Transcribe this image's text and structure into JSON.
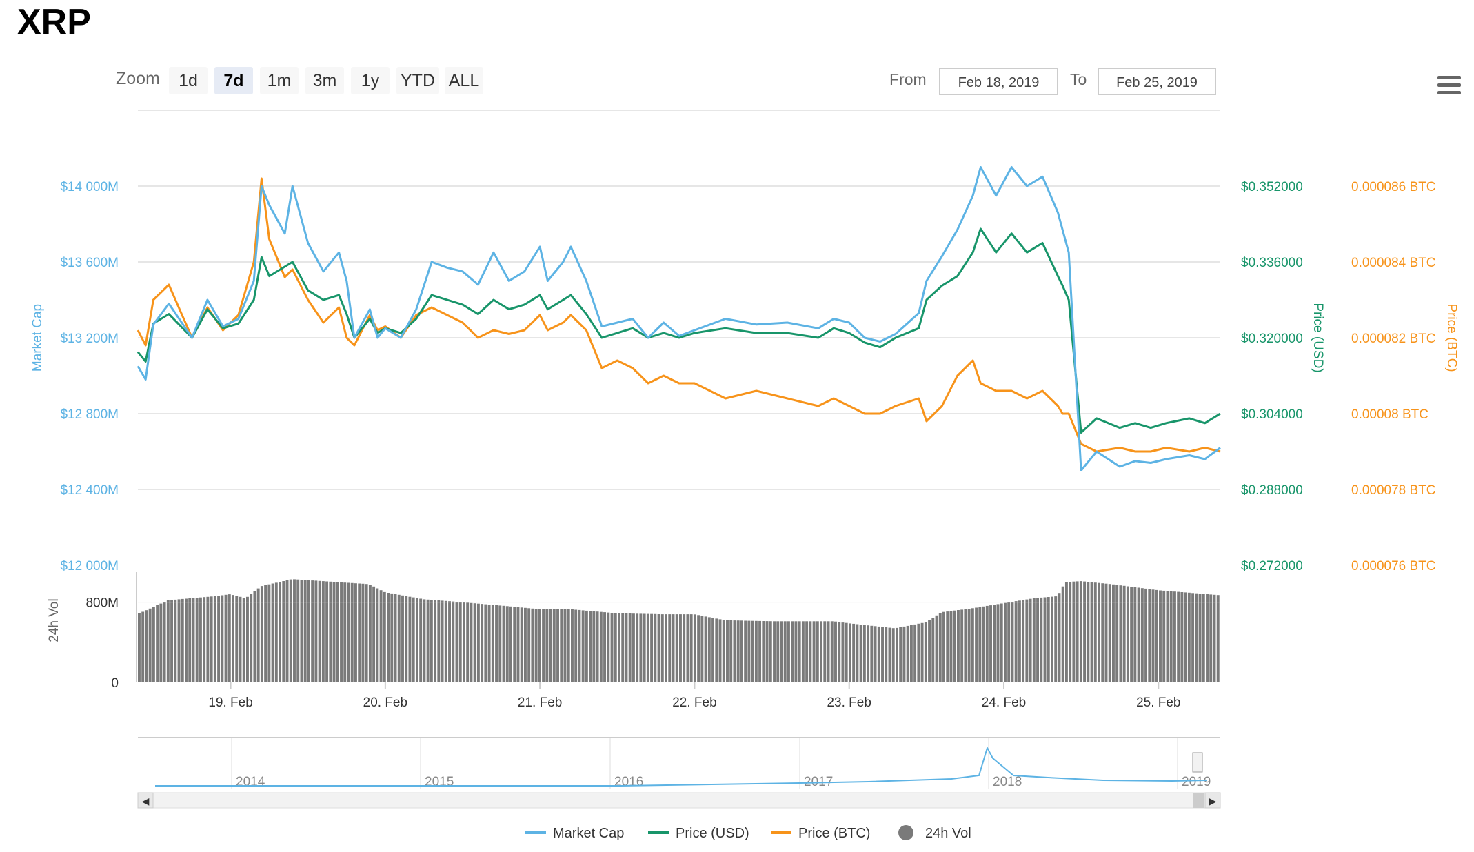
{
  "title": "XRP",
  "toolbar": {
    "zoom_label": "Zoom",
    "zoom_buttons": [
      "1d",
      "7d",
      "1m",
      "3m",
      "1y",
      "YTD",
      "ALL"
    ],
    "active_zoom": "7d",
    "from_label": "From",
    "from_value": "Feb 18, 2019",
    "to_label": "To",
    "to_value": "Feb 25, 2019"
  },
  "colors": {
    "market_cap": "#5db3e4",
    "price_usd": "#18956a",
    "price_btc": "#f7931a",
    "volume": "#7a7a7a"
  },
  "chart_data": {
    "type": "line",
    "x_labels": [
      "19. Feb",
      "20. Feb",
      "21. Feb",
      "22. Feb",
      "23. Feb",
      "24. Feb",
      "25. Feb"
    ],
    "axes": {
      "market_cap": {
        "title": "Market Cap",
        "ticks": [
          "$14 000M",
          "$13 600M",
          "$13 200M",
          "$12 800M",
          "$12 400M",
          "$12 000M"
        ],
        "range": [
          12000,
          14000
        ]
      },
      "price_usd": {
        "title": "Price (USD)",
        "ticks": [
          "$0.352000",
          "$0.336000",
          "$0.320000",
          "$0.304000",
          "$0.288000",
          "$0.272000"
        ],
        "range": [
          0.272,
          0.352
        ]
      },
      "price_btc": {
        "title": "Price (BTC)",
        "ticks": [
          "0.000086 BTC",
          "0.000084 BTC",
          "0.000082 BTC",
          "0.00008 BTC",
          "0.000078 BTC",
          "0.000076 BTC"
        ],
        "range": [
          7.6e-05,
          8.6e-05
        ]
      },
      "volume": {
        "title": "24h Vol",
        "ticks": [
          "800M",
          "0"
        ],
        "range": [
          0,
          1100
        ]
      }
    },
    "x_range_days": [
      18.4,
      25.4
    ],
    "series": [
      {
        "name": "Market Cap",
        "key": "market_cap",
        "x": [
          18.4,
          18.45,
          18.5,
          18.6,
          18.75,
          18.85,
          18.95,
          19.05,
          19.15,
          19.2,
          19.25,
          19.35,
          19.4,
          19.5,
          19.6,
          19.7,
          19.75,
          19.8,
          19.9,
          19.95,
          20.0,
          20.1,
          20.2,
          20.3,
          20.4,
          20.5,
          20.6,
          20.7,
          20.8,
          20.9,
          21.0,
          21.05,
          21.15,
          21.2,
          21.3,
          21.4,
          21.5,
          21.6,
          21.7,
          21.8,
          21.9,
          22.0,
          22.2,
          22.4,
          22.6,
          22.8,
          22.9,
          23.0,
          23.1,
          23.2,
          23.3,
          23.45,
          23.5,
          23.6,
          23.7,
          23.8,
          23.85,
          23.95,
          24.05,
          24.15,
          24.25,
          24.35,
          24.38,
          24.42,
          24.5,
          24.6,
          24.75,
          24.85,
          24.95,
          25.05,
          25.2,
          25.3,
          25.4
        ],
        "values": [
          13050,
          12980,
          13270,
          13380,
          13200,
          13400,
          13260,
          13300,
          13500,
          14000,
          13900,
          13750,
          14000,
          13700,
          13550,
          13650,
          13500,
          13200,
          13350,
          13200,
          13250,
          13200,
          13350,
          13600,
          13570,
          13550,
          13480,
          13650,
          13500,
          13550,
          13680,
          13500,
          13600,
          13680,
          13500,
          13260,
          13280,
          13300,
          13200,
          13280,
          13210,
          13240,
          13300,
          13270,
          13280,
          13250,
          13300,
          13280,
          13200,
          13180,
          13220,
          13330,
          13500,
          13630,
          13770,
          13950,
          14100,
          13950,
          14100,
          14000,
          14050,
          13860,
          13770,
          13650,
          12500,
          12600,
          12520,
          12550,
          12540,
          12560,
          12580,
          12560,
          12620
        ]
      },
      {
        "name": "Price (USD)",
        "key": "price_usd",
        "x": [
          18.4,
          18.45,
          18.5,
          18.6,
          18.75,
          18.85,
          18.95,
          19.05,
          19.15,
          19.2,
          19.25,
          19.35,
          19.4,
          19.5,
          19.6,
          19.7,
          19.75,
          19.8,
          19.9,
          19.95,
          20.0,
          20.1,
          20.2,
          20.3,
          20.4,
          20.5,
          20.6,
          20.7,
          20.8,
          20.9,
          21.0,
          21.05,
          21.15,
          21.2,
          21.3,
          21.4,
          21.5,
          21.6,
          21.7,
          21.8,
          21.9,
          22.0,
          22.2,
          22.4,
          22.6,
          22.8,
          22.9,
          23.0,
          23.1,
          23.2,
          23.3,
          23.45,
          23.5,
          23.6,
          23.7,
          23.8,
          23.85,
          23.95,
          24.05,
          24.15,
          24.25,
          24.35,
          24.38,
          24.42,
          24.5,
          24.6,
          24.75,
          24.85,
          24.95,
          25.05,
          25.2,
          25.3,
          25.4
        ],
        "values": [
          0.317,
          0.315,
          0.323,
          0.325,
          0.32,
          0.326,
          0.322,
          0.323,
          0.328,
          0.337,
          0.333,
          0.335,
          0.336,
          0.33,
          0.328,
          0.329,
          0.325,
          0.32,
          0.324,
          0.321,
          0.322,
          0.321,
          0.324,
          0.329,
          0.328,
          0.327,
          0.325,
          0.328,
          0.326,
          0.327,
          0.329,
          0.326,
          0.328,
          0.329,
          0.325,
          0.32,
          0.321,
          0.322,
          0.32,
          0.321,
          0.32,
          0.321,
          0.322,
          0.321,
          0.321,
          0.32,
          0.322,
          0.321,
          0.319,
          0.318,
          0.32,
          0.322,
          0.328,
          0.331,
          0.333,
          0.338,
          0.343,
          0.338,
          0.342,
          0.338,
          0.34,
          0.333,
          0.331,
          0.328,
          0.3,
          0.303,
          0.301,
          0.302,
          0.301,
          0.302,
          0.303,
          0.302,
          0.304
        ]
      },
      {
        "name": "Price (BTC)",
        "key": "price_btc",
        "x": [
          18.4,
          18.45,
          18.5,
          18.6,
          18.75,
          18.85,
          18.95,
          19.05,
          19.15,
          19.2,
          19.25,
          19.35,
          19.4,
          19.5,
          19.6,
          19.7,
          19.75,
          19.8,
          19.9,
          19.95,
          20.0,
          20.1,
          20.2,
          20.3,
          20.4,
          20.5,
          20.6,
          20.7,
          20.8,
          20.9,
          21.0,
          21.05,
          21.15,
          21.2,
          21.3,
          21.4,
          21.5,
          21.6,
          21.7,
          21.8,
          21.9,
          22.0,
          22.2,
          22.4,
          22.6,
          22.8,
          22.9,
          23.0,
          23.1,
          23.2,
          23.3,
          23.45,
          23.5,
          23.6,
          23.7,
          23.8,
          23.85,
          23.95,
          24.05,
          24.15,
          24.25,
          24.35,
          24.38,
          24.42,
          24.5,
          24.6,
          24.75,
          24.85,
          24.95,
          25.05,
          25.2,
          25.3,
          25.4
        ],
        "values": [
          8.22e-05,
          8.18e-05,
          8.3e-05,
          8.34e-05,
          8.2e-05,
          8.28e-05,
          8.22e-05,
          8.26e-05,
          8.4e-05,
          8.62e-05,
          8.46e-05,
          8.36e-05,
          8.38e-05,
          8.3e-05,
          8.24e-05,
          8.28e-05,
          8.2e-05,
          8.18e-05,
          8.26e-05,
          8.22e-05,
          8.23e-05,
          8.2e-05,
          8.26e-05,
          8.28e-05,
          8.26e-05,
          8.24e-05,
          8.2e-05,
          8.22e-05,
          8.21e-05,
          8.22e-05,
          8.26e-05,
          8.22e-05,
          8.24e-05,
          8.26e-05,
          8.22e-05,
          8.12e-05,
          8.14e-05,
          8.12e-05,
          8.08e-05,
          8.1e-05,
          8.08e-05,
          8.08e-05,
          8.04e-05,
          8.06e-05,
          8.04e-05,
          8.02e-05,
          8.04e-05,
          8.02e-05,
          8e-05,
          8e-05,
          8.02e-05,
          8.04e-05,
          7.98e-05,
          8.02e-05,
          8.1e-05,
          8.14e-05,
          8.08e-05,
          8.06e-05,
          8.06e-05,
          8.04e-05,
          8.06e-05,
          8.02e-05,
          8e-05,
          8e-05,
          7.92e-05,
          7.9e-05,
          7.91e-05,
          7.9e-05,
          7.9e-05,
          7.91e-05,
          7.9e-05,
          7.91e-05,
          7.9e-05
        ]
      }
    ],
    "volume": {
      "name": "24h Vol",
      "x": [
        18.4,
        18.6,
        18.9,
        19.0,
        19.1,
        19.2,
        19.4,
        19.6,
        19.9,
        20.0,
        20.25,
        20.5,
        20.8,
        21.0,
        21.2,
        21.5,
        21.8,
        22.0,
        22.2,
        22.5,
        22.9,
        23.0,
        23.3,
        23.5,
        23.6,
        23.8,
        24.0,
        24.2,
        24.35,
        24.4,
        24.5,
        24.7,
        25.0,
        25.4
      ],
      "values": [
        680,
        820,
        860,
        880,
        840,
        960,
        1030,
        1010,
        980,
        900,
        830,
        800,
        760,
        730,
        730,
        690,
        680,
        680,
        620,
        610,
        610,
        590,
        540,
        600,
        700,
        740,
        790,
        840,
        860,
        1000,
        1010,
        980,
        920,
        870
      ]
    },
    "navigator": {
      "labels": [
        "2014",
        "2015",
        "2016",
        "2017",
        "2018",
        "2019"
      ]
    },
    "legend": [
      "Market Cap",
      "Price (USD)",
      "Price (BTC)",
      "24h Vol"
    ],
    "legend_placement": "bottom-center",
    "grid": true
  }
}
